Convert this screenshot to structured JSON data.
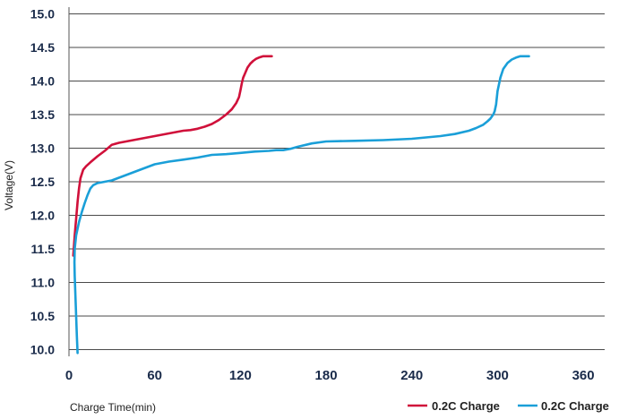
{
  "chart_data": {
    "type": "line",
    "title": "",
    "xlabel": "Charge Time(min)",
    "ylabel": "Voltage(V)",
    "xlim": [
      0,
      375
    ],
    "ylim": [
      9.9,
      15.1
    ],
    "xticks": [
      "0",
      "60",
      "120",
      "180",
      "240",
      "300",
      "360"
    ],
    "xtick_values": [
      0,
      60,
      120,
      180,
      240,
      300,
      360
    ],
    "yticks": [
      "10.0",
      "10.5",
      "11.0",
      "11.5",
      "12.0",
      "12.5",
      "13.0",
      "13.5",
      "14.0",
      "14.5",
      "15.0"
    ],
    "ytick_values": [
      10.0,
      10.5,
      11.0,
      11.5,
      12.0,
      12.5,
      13.0,
      13.5,
      14.0,
      14.5,
      15.0
    ],
    "grid": "horizontal",
    "legend_position": "bottom-right",
    "series": [
      {
        "name": "0.2C Charge",
        "color": "#d0103a",
        "x": [
          3,
          4,
          5,
          6,
          7,
          8,
          10,
          12,
          15,
          20,
          25,
          30,
          35,
          40,
          50,
          60,
          70,
          80,
          85,
          90,
          95,
          100,
          105,
          110,
          114,
          117,
          119,
          120,
          121,
          122,
          123,
          124,
          125,
          127,
          129,
          131,
          133,
          136,
          139,
          142
        ],
        "y": [
          11.4,
          11.7,
          11.95,
          12.2,
          12.4,
          12.55,
          12.68,
          12.73,
          12.79,
          12.88,
          12.96,
          13.05,
          13.08,
          13.1,
          13.14,
          13.18,
          13.22,
          13.26,
          13.27,
          13.29,
          13.32,
          13.36,
          13.42,
          13.5,
          13.58,
          13.67,
          13.76,
          13.86,
          13.97,
          14.05,
          14.1,
          14.15,
          14.2,
          14.26,
          14.3,
          14.33,
          14.35,
          14.37,
          14.37,
          14.37
        ]
      },
      {
        "name": "0.2C Charge",
        "color": "#1a9fd8",
        "x": [
          6,
          5.5,
          5,
          4.5,
          4,
          3.8,
          4,
          5,
          7,
          9,
          11,
          13,
          15,
          17,
          20,
          25,
          30,
          35,
          40,
          50,
          55,
          60,
          70,
          80,
          90,
          100,
          110,
          120,
          130,
          140,
          145,
          150,
          155,
          160,
          170,
          180,
          200,
          220,
          240,
          260,
          270,
          280,
          285,
          290,
          293,
          295,
          297,
          298,
          299,
          300,
          302,
          304,
          307,
          310,
          313,
          316,
          319,
          322
        ],
        "y": [
          9.95,
          10.2,
          10.5,
          10.8,
          11.1,
          11.3,
          11.5,
          11.7,
          11.9,
          12.05,
          12.18,
          12.3,
          12.4,
          12.45,
          12.48,
          12.5,
          12.52,
          12.56,
          12.6,
          12.68,
          12.72,
          12.76,
          12.8,
          12.83,
          12.86,
          12.9,
          12.91,
          12.93,
          12.95,
          12.96,
          12.97,
          12.97,
          12.99,
          13.02,
          13.07,
          13.1,
          13.11,
          13.12,
          13.14,
          13.18,
          13.21,
          13.26,
          13.3,
          13.35,
          13.4,
          13.44,
          13.5,
          13.55,
          13.65,
          13.85,
          14.05,
          14.18,
          14.27,
          14.32,
          14.35,
          14.37,
          14.37,
          14.37
        ]
      }
    ]
  }
}
